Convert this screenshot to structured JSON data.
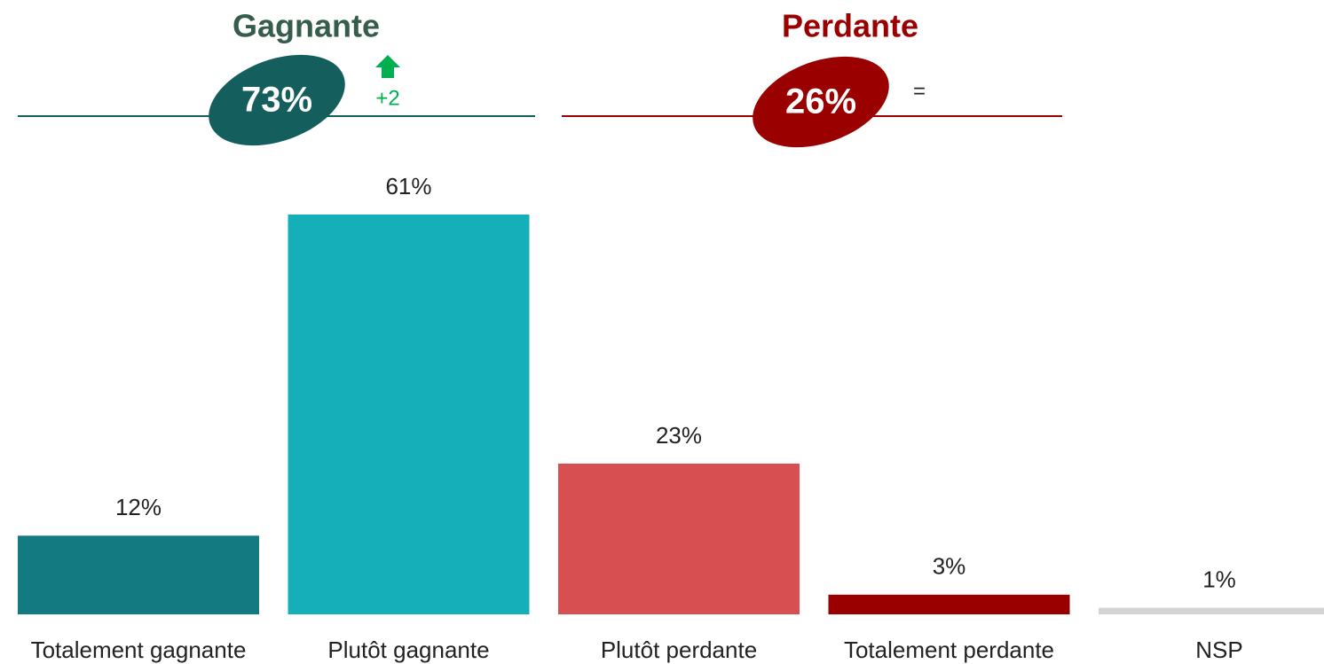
{
  "chart_data": {
    "type": "bar",
    "categories": [
      "Totalement gagnante",
      "Plutôt gagnante",
      "Plutôt perdante",
      "Totalement perdante",
      "NSP"
    ],
    "values": [
      12,
      61,
      23,
      3,
      1
    ],
    "value_labels": [
      "12%",
      "61%",
      "23%",
      "3%",
      "1%"
    ],
    "colors": [
      "#127a80",
      "#14afb8",
      "#d84f52",
      "#9b0000",
      "#d4d4d4"
    ],
    "groups": [
      {
        "title": "Gagnante",
        "value": 73,
        "value_label": "73%",
        "change": "+2",
        "color": "#155e5e",
        "title_color": "#365d4c",
        "change_color": "#00b050"
      },
      {
        "title": "Perdante",
        "value": 26,
        "value_label": "26%",
        "change": "=",
        "color": "#9b0000",
        "title_color": "#9b0000",
        "change_color": "#222222"
      }
    ]
  }
}
